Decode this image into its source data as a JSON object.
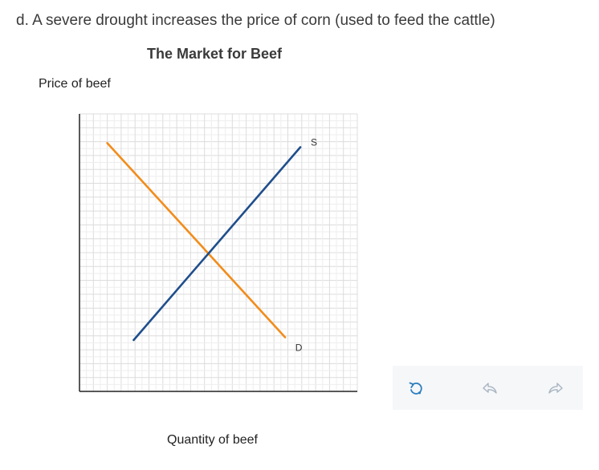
{
  "question": "d. A severe drought increases the price of corn (used to feed the cattle)",
  "chart_data": {
    "type": "line",
    "title": "The Market for Beef",
    "xlabel": "Quantity of beef",
    "ylabel": "Price of beef",
    "xlim": [
      0,
      20
    ],
    "ylim": [
      0,
      20
    ],
    "grid": true,
    "series": [
      {
        "name": "D",
        "color": "#f28c1b",
        "x": [
          2,
          14.8
        ],
        "y": [
          17.9,
          3.9
        ]
      },
      {
        "name": "S",
        "color": "#1f4e8c",
        "x": [
          3.9,
          15.9
        ],
        "y": [
          3.7,
          17.6
        ]
      }
    ]
  },
  "toolbar": {
    "icons": [
      "reset-icon",
      "undo-icon",
      "redo-icon"
    ]
  }
}
